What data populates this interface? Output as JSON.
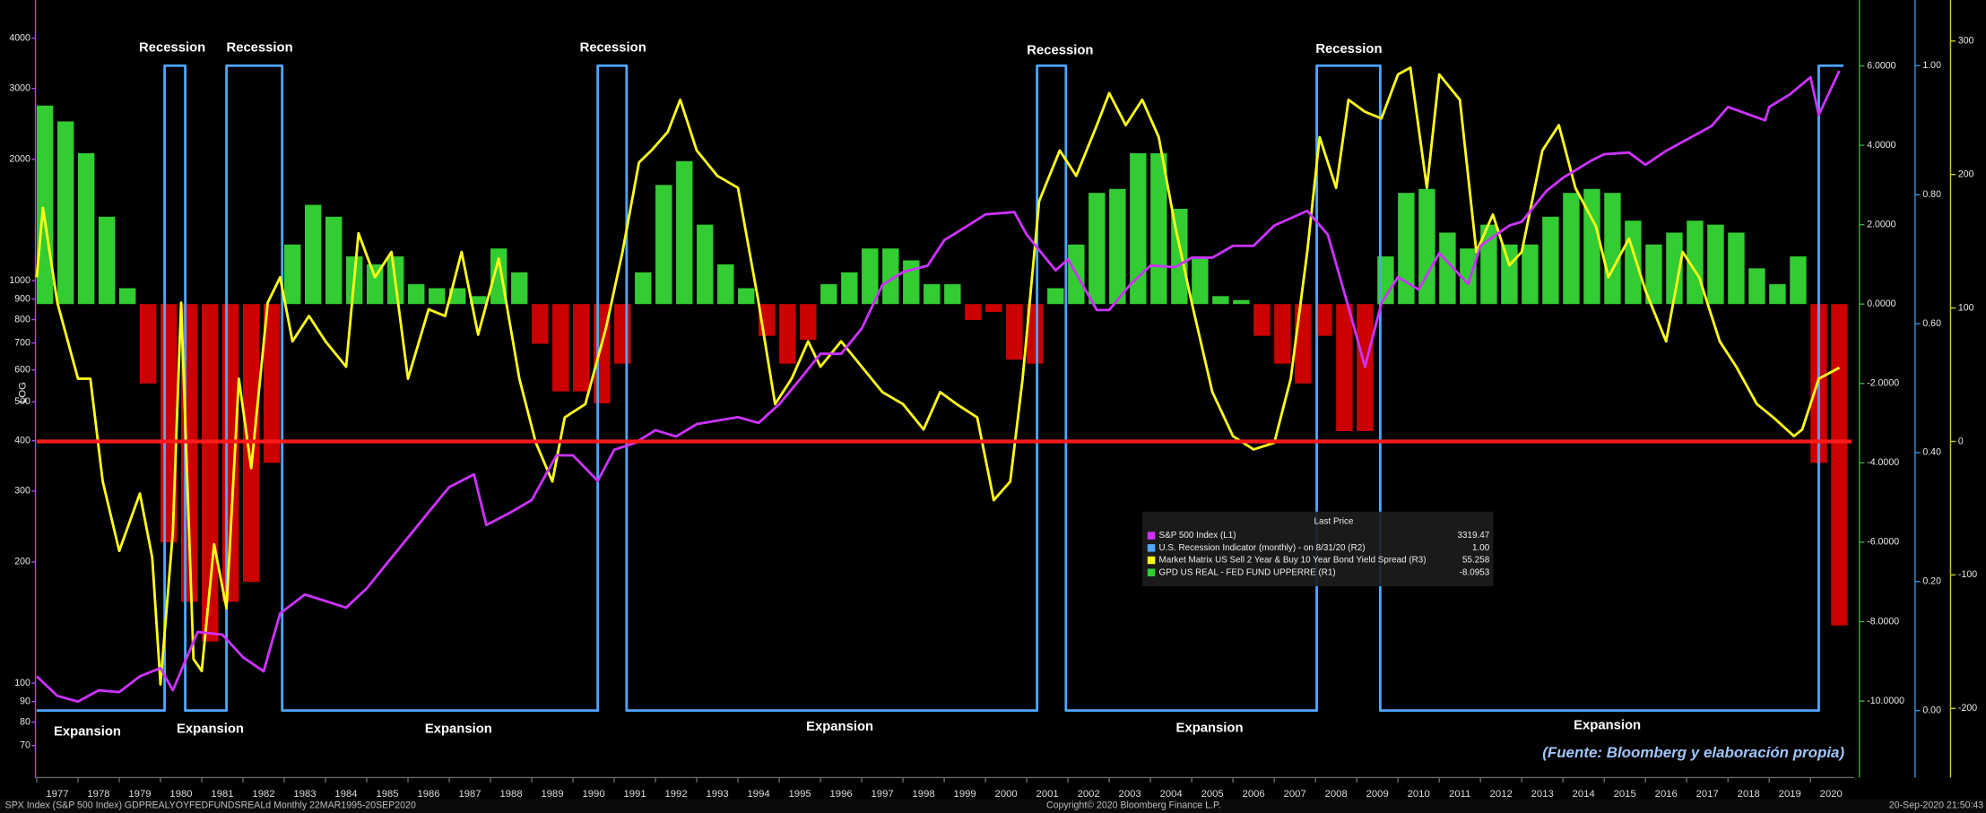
{
  "chart_data": {
    "type": "line",
    "y_label": "LOG",
    "xlim": [
      1977,
      2021
    ],
    "xticks": [
      1977,
      1978,
      1979,
      1980,
      1981,
      1982,
      1983,
      1984,
      1985,
      1986,
      1987,
      1988,
      1989,
      1990,
      1991,
      1992,
      1993,
      1994,
      1995,
      1996,
      1997,
      1998,
      1999,
      2000,
      2001,
      2002,
      2003,
      2004,
      2005,
      2006,
      2007,
      2008,
      2009,
      2010,
      2011,
      2012,
      2013,
      2014,
      2015,
      2016,
      2017,
      2018,
      2019,
      2020
    ],
    "ylog": true,
    "ylim": [
      60,
      4800
    ],
    "yticks": [
      70,
      80,
      90,
      100,
      200,
      300,
      400,
      500,
      600,
      700,
      800,
      900,
      1000,
      2000,
      3000,
      4000
    ],
    "y2lim": [
      -11.8,
      7.5
    ],
    "y2ticks": [
      {
        "value": -10,
        "label": "-10.0000"
      },
      {
        "value": -8,
        "label": "-8.0000"
      },
      {
        "value": -6,
        "label": "-6.0000"
      },
      {
        "value": -4,
        "label": "-4.0000"
      },
      {
        "value": -2,
        "label": "-2.0000"
      },
      {
        "value": 0,
        "label": "0.0000"
      },
      {
        "value": 2,
        "label": "2.0000"
      },
      {
        "value": 4,
        "label": "4.0000"
      },
      {
        "value": 6,
        "label": "6.0000"
      }
    ],
    "y3lim": [
      -0.096,
      1.092
    ],
    "y3ticks": [
      {
        "value": 0,
        "label": "0.00"
      },
      {
        "value": 0.2,
        "label": "0.20"
      },
      {
        "value": 0.4,
        "label": "0.40"
      },
      {
        "value": 0.6,
        "label": "0.60"
      },
      {
        "value": 0.8,
        "label": "0.80"
      },
      {
        "value": 1,
        "label": "1.00"
      }
    ],
    "y4lim": [
      -248,
      326
    ],
    "y4ticks": [
      -200,
      -100,
      0,
      100,
      200,
      300
    ],
    "hline": {
      "axis": "y4",
      "value": 0,
      "color": "#ff1a1a"
    },
    "legend_title": "Last Price",
    "series": [
      {
        "name": "S&P 500 Index  (L1)",
        "type": "line",
        "axis": "y",
        "color": "#cc33ff",
        "last": "3319.47",
        "x": [
          1977.0,
          1977.5,
          1978.0,
          1978.5,
          1979.0,
          1979.5,
          1980.0,
          1980.3,
          1980.9,
          1981.5,
          1982.0,
          1982.5,
          1982.9,
          1983.5,
          1984.0,
          1984.5,
          1985.0,
          1985.5,
          1986.0,
          1986.5,
          1987.0,
          1987.6,
          1987.9,
          1988.5,
          1989.0,
          1989.6,
          1990.0,
          1990.6,
          1991.0,
          1991.5,
          1992.0,
          1992.5,
          1993.0,
          1994.0,
          1994.5,
          1995.0,
          1995.5,
          1996.0,
          1996.5,
          1997.0,
          1997.5,
          1998.0,
          1998.6,
          1999.0,
          1999.5,
          2000.0,
          2000.7,
          2001.0,
          2001.7,
          2002.0,
          2002.7,
          2003.0,
          2003.5,
          2004.0,
          2004.6,
          2005.0,
          2005.5,
          2006.0,
          2006.5,
          2007.0,
          2007.8,
          2008.3,
          2008.9,
          2009.2,
          2009.6,
          2010.0,
          2010.5,
          2011.0,
          2011.7,
          2012.0,
          2012.7,
          2013.0,
          2013.6,
          2014.0,
          2014.7,
          2015.0,
          2015.6,
          2016.0,
          2016.5,
          2017.0,
          2017.6,
          2018.0,
          2018.9,
          2019.0,
          2019.5,
          2020.0,
          2020.2,
          2020.7
        ],
        "values": [
          104,
          93,
          90,
          96,
          95,
          104,
          109,
          96,
          134,
          132,
          116,
          107,
          149,
          166,
          160,
          154,
          172,
          199,
          230,
          266,
          307,
          330,
          247,
          266,
          285,
          368,
          368,
          318,
          380,
          395,
          425,
          410,
          440,
          458,
          443,
          493,
          568,
          658,
          658,
          760,
          975,
          1050,
          1090,
          1260,
          1355,
          1460,
          1480,
          1300,
          1060,
          1130,
          845,
          845,
          975,
          1090,
          1080,
          1140,
          1140,
          1220,
          1220,
          1370,
          1490,
          1300,
          790,
          610,
          880,
          1020,
          950,
          1170,
          980,
          1220,
          1370,
          1400,
          1670,
          1800,
          1990,
          2060,
          2080,
          1940,
          2100,
          2240,
          2420,
          2700,
          2500,
          2700,
          2900,
          3200,
          2580,
          3319.47
        ]
      },
      {
        "name": "U.S. Recession Indicator (monthly) -  on 8/31/20  (R2)",
        "type": "line",
        "axis": "y3",
        "color": "#4da6ff",
        "last": "1.00",
        "x": [
          1977,
          1980.1,
          1980.1,
          1980.6,
          1980.6,
          1981.6,
          1981.6,
          1982.95,
          1982.95,
          1990.6,
          1990.6,
          1991.3,
          1991.3,
          2001.25,
          2001.25,
          2001.95,
          2001.95,
          2008.03,
          2008.03,
          2009.57,
          2009.57,
          2020.2,
          2020.2,
          2020.8
        ],
        "values": [
          0,
          0,
          1,
          1,
          0,
          0,
          1,
          1,
          0,
          0,
          1,
          1,
          0,
          0,
          1,
          1,
          0,
          0,
          1,
          1,
          0,
          0,
          1,
          1
        ]
      },
      {
        "name": "Market Matrix US Sell 2 Year & Buy 10 Year Bond Yield Spread  (R3)",
        "type": "line",
        "axis": "y4",
        "color": "#ffff1a",
        "last": "55.258",
        "x": [
          1977.0,
          1977.15,
          1977.5,
          1978.0,
          1978.3,
          1978.6,
          1979.0,
          1979.5,
          1979.8,
          1980.0,
          1980.3,
          1980.5,
          1980.8,
          1981.0,
          1981.3,
          1981.6,
          1981.9,
          1982.2,
          1982.6,
          1982.9,
          1983.2,
          1983.6,
          1984.0,
          1984.5,
          1984.8,
          1985.2,
          1985.6,
          1986.0,
          1986.5,
          1986.9,
          1987.3,
          1987.7,
          1988.2,
          1988.7,
          1989.1,
          1989.5,
          1989.8,
          1990.3,
          1990.8,
          1991.2,
          1991.6,
          1991.9,
          1992.3,
          1992.6,
          1993.0,
          1993.5,
          1994.0,
          1994.5,
          1994.9,
          1995.3,
          1995.7,
          1996.0,
          1996.5,
          1997.0,
          1997.5,
          1998.0,
          1998.5,
          1998.9,
          1999.3,
          1999.8,
          2000.2,
          2000.6,
          2000.9,
          2001.3,
          2001.8,
          2002.2,
          2002.7,
          2003.0,
          2003.4,
          2003.8,
          2004.2,
          2004.6,
          2005.0,
          2005.5,
          2006.0,
          2006.5,
          2007.0,
          2007.4,
          2007.8,
          2008.1,
          2008.5,
          2008.8,
          2009.2,
          2009.6,
          2010.0,
          2010.3,
          2010.7,
          2011.0,
          2011.5,
          2011.9,
          2012.3,
          2012.7,
          2013.0,
          2013.5,
          2013.9,
          2014.3,
          2014.8,
          2015.1,
          2015.6,
          2016.0,
          2016.5,
          2016.9,
          2017.3,
          2017.8,
          2018.2,
          2018.7,
          2019.1,
          2019.6,
          2019.8,
          2020.2,
          2020.5,
          2020.7
        ],
        "values": [
          123,
          175,
          104,
          47,
          47,
          -30,
          -82,
          -39,
          -87,
          -182,
          -68,
          104,
          -163,
          -172,
          -77,
          -125,
          47,
          -20,
          104,
          123,
          75,
          94,
          75,
          56,
          156,
          123,
          142,
          47,
          99,
          94,
          142,
          80,
          137,
          47,
          -1,
          -30,
          18,
          28,
          85,
          142,
          209,
          218,
          232,
          256,
          218,
          199,
          190,
          104,
          28,
          47,
          75,
          56,
          75,
          56,
          37,
          28,
          9,
          37,
          28,
          18,
          -44,
          -30,
          47,
          180,
          218,
          199,
          237,
          261,
          237,
          256,
          228,
          161,
          104,
          37,
          4,
          -6,
          -1,
          47,
          142,
          228,
          190,
          256,
          247,
          242,
          275,
          280,
          190,
          275,
          256,
          142,
          170,
          132,
          142,
          218,
          237,
          190,
          161,
          123,
          152,
          113,
          75,
          142,
          123,
          75,
          56,
          28,
          18,
          4,
          9,
          47,
          52,
          55.258
        ]
      },
      {
        "name": "GPD US REAL - FED FUND UPPERRE  (R1)",
        "type": "bar",
        "axis": "y2",
        "color": "#33cc33",
        "negative_color": "#cc0000",
        "last": "-8.0953",
        "x": [
          1977,
          1977.5,
          1978,
          1978.5,
          1979,
          1979.5,
          1980,
          1980.5,
          1981,
          1981.5,
          1982,
          1982.5,
          1983,
          1983.5,
          1984,
          1984.5,
          1985,
          1985.5,
          1986,
          1986.5,
          1987,
          1987.5,
          1988,
          1988.5,
          1989,
          1989.5,
          1990,
          1990.5,
          1991,
          1991.5,
          1992,
          1992.5,
          1993,
          1993.5,
          1994,
          1994.5,
          1995,
          1995.5,
          1996,
          1996.5,
          1997,
          1997.5,
          1998,
          1998.5,
          1999,
          1999.5,
          2000,
          2000.5,
          2001,
          2001.5,
          2002,
          2002.5,
          2003,
          2003.5,
          2004,
          2004.5,
          2005,
          2005.5,
          2006,
          2006.5,
          2007,
          2007.5,
          2008,
          2008.5,
          2009,
          2009.5,
          2010,
          2010.5,
          2011,
          2011.5,
          2012,
          2012.5,
          2013,
          2013.5,
          2014,
          2014.5,
          2015,
          2015.5,
          2016,
          2016.5,
          2017,
          2017.5,
          2018,
          2018.5,
          2019,
          2019.5,
          2020,
          2020.5
        ],
        "values": [
          5,
          4.6,
          3.8,
          2.2,
          0.4,
          -2,
          -6,
          -7.5,
          -8.5,
          -7.5,
          -7,
          -4,
          1.5,
          2.5,
          2.2,
          1.2,
          1,
          1.2,
          0.5,
          0.4,
          0.4,
          0.2,
          1.4,
          0.8,
          -1,
          -2.2,
          -2.2,
          -2.5,
          -1.5,
          0.8,
          3,
          3.6,
          2,
          1,
          0.4,
          -0.8,
          -1.5,
          -0.9,
          0.5,
          0.8,
          1.4,
          1.4,
          1.1,
          0.5,
          0.5,
          -0.4,
          -0.2,
          -1.4,
          -1.5,
          0.4,
          1.5,
          2.8,
          2.9,
          3.8,
          3.8,
          2.4,
          1.2,
          0.2,
          0.1,
          -0.8,
          -1.5,
          -2,
          -0.8,
          -3.2,
          -3.2,
          1.2,
          2.8,
          2.9,
          1.8,
          1.4,
          2,
          1.5,
          1.5,
          2.2,
          2.8,
          2.9,
          2.8,
          2.1,
          1.5,
          1.8,
          2.1,
          2,
          1.8,
          0.9,
          0.5,
          1.2,
          -4,
          -8.0953
        ]
      }
    ],
    "annotations": {
      "recession": [
        "Recession",
        "Recession",
        "Recession",
        "Recession",
        "Recession"
      ],
      "expansion": [
        "Expansion",
        "Expansion",
        "Expansion",
        "Expansion",
        "Expansion",
        "Expansion"
      ],
      "source": "(Fuente: Bloomberg y elaboración propia)"
    },
    "footer": {
      "left": "SPX Index (S&P 500 Index) GDPREALYOYFEDFUNDSREALd  Monthly 22MAR1995-20SEP2020",
      "center": "Copyright© 2020 Bloomberg Finance L.P.",
      "right": "20-Sep-2020 21:50:43"
    }
  }
}
